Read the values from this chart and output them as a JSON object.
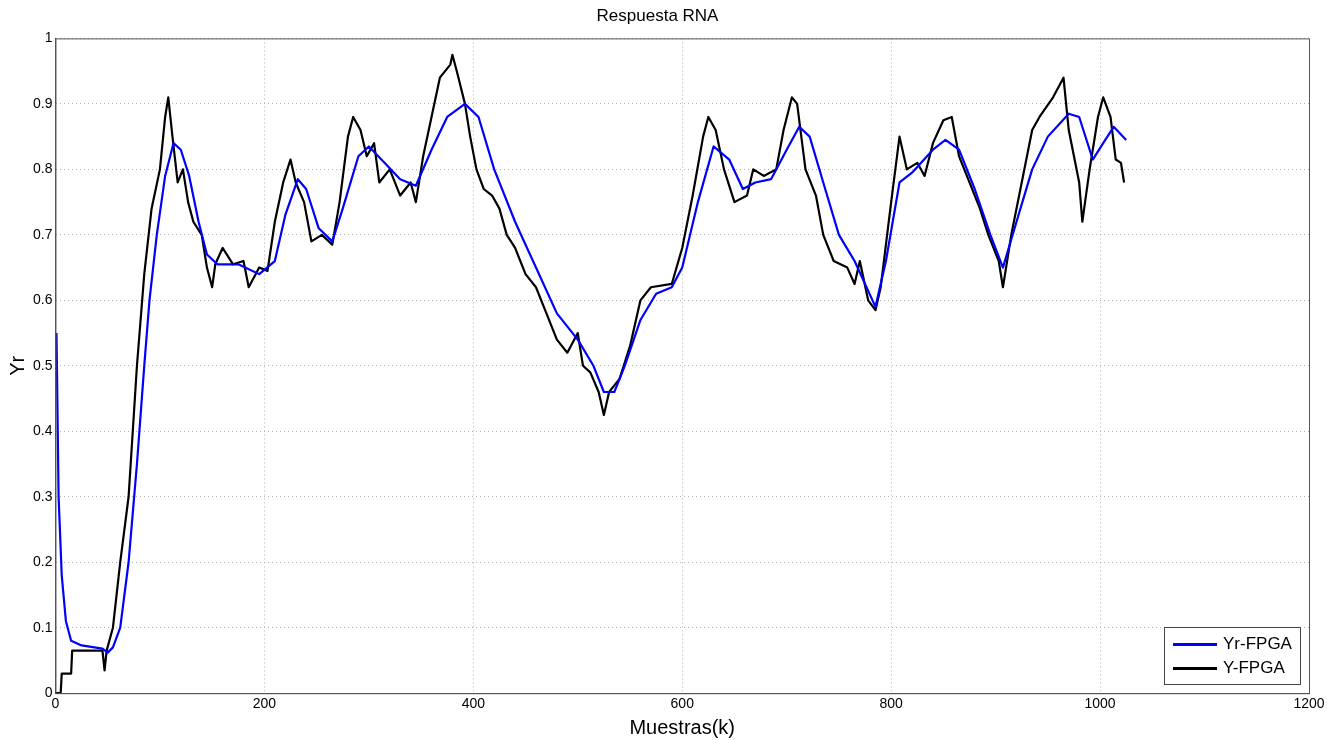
{
  "chart_data": {
    "type": "line",
    "title": "Respuesta RNA",
    "xlabel": "Muestras(k)",
    "ylabel": "Yr",
    "xlim": [
      0,
      1200
    ],
    "xticks": [
      0,
      200,
      400,
      600,
      800,
      1000,
      1200
    ],
    "ylim": [
      0,
      1
    ],
    "yticks": [
      0,
      0.1,
      0.2,
      0.3,
      0.4,
      0.5,
      0.6,
      0.7,
      0.8,
      0.9,
      1
    ],
    "grid": true,
    "legend": "bottom right",
    "marker": "none",
    "line_style": "solid",
    "series": [
      {
        "name": "Yr-FPGA",
        "color": "#0000ff",
        "x": [
          1,
          3,
          6,
          10,
          15,
          25,
          45,
          50,
          55,
          62,
          70,
          78,
          85,
          90,
          97,
          105,
          113,
          120,
          128,
          137,
          145,
          155,
          175,
          195,
          210,
          220,
          232,
          240,
          252,
          265,
          275,
          290,
          300,
          315,
          330,
          345,
          360,
          375,
          392,
          405,
          420,
          440,
          460,
          480,
          500,
          515,
          525,
          535,
          545,
          560,
          575,
          590,
          600,
          615,
          630,
          645,
          658,
          670,
          685,
          700,
          712,
          722,
          735,
          750,
          765,
          785,
          795,
          808,
          820,
          840,
          852,
          865,
          880,
          895,
          907,
          920,
          935,
          950,
          970,
          980,
          993,
          1003,
          1013,
          1025
        ],
        "values": [
          0.55,
          0.3,
          0.18,
          0.11,
          0.08,
          0.073,
          0.068,
          0.062,
          0.07,
          0.1,
          0.2,
          0.35,
          0.5,
          0.6,
          0.7,
          0.79,
          0.84,
          0.83,
          0.79,
          0.72,
          0.67,
          0.655,
          0.655,
          0.64,
          0.66,
          0.73,
          0.785,
          0.77,
          0.71,
          0.69,
          0.74,
          0.82,
          0.835,
          0.81,
          0.785,
          0.775,
          0.83,
          0.88,
          0.9,
          0.88,
          0.8,
          0.72,
          0.65,
          0.58,
          0.54,
          0.5,
          0.46,
          0.46,
          0.5,
          0.57,
          0.61,
          0.62,
          0.65,
          0.75,
          0.835,
          0.815,
          0.77,
          0.78,
          0.785,
          0.83,
          0.865,
          0.85,
          0.78,
          0.7,
          0.66,
          0.59,
          0.66,
          0.78,
          0.795,
          0.83,
          0.845,
          0.83,
          0.77,
          0.7,
          0.65,
          0.72,
          0.8,
          0.85,
          0.885,
          0.88,
          0.815,
          0.84,
          0.865,
          0.845
        ]
      },
      {
        "name": "Y-FPGA",
        "color": "#000000",
        "x": [
          0,
          5,
          6,
          15,
          16,
          45,
          47,
          49,
          55,
          62,
          70,
          78,
          85,
          92,
          100,
          105,
          108,
          112,
          117,
          122,
          127,
          132,
          140,
          145,
          150,
          153,
          160,
          170,
          180,
          185,
          195,
          203,
          210,
          218,
          225,
          230,
          238,
          245,
          255,
          265,
          272,
          280,
          285,
          292,
          298,
          305,
          310,
          320,
          330,
          340,
          345,
          352,
          360,
          368,
          378,
          380,
          385,
          392,
          397,
          403,
          410,
          418,
          425,
          432,
          440,
          450,
          460,
          470,
          480,
          490,
          500,
          505,
          512,
          520,
          525,
          530,
          540,
          550,
          560,
          570,
          590,
          600,
          610,
          620,
          625,
          632,
          640,
          650,
          662,
          668,
          678,
          690,
          697,
          705,
          710,
          718,
          728,
          735,
          745,
          758,
          765,
          770,
          778,
          785,
          790,
          800,
          808,
          815,
          825,
          832,
          840,
          850,
          858,
          865,
          875,
          885,
          893,
          903,
          907,
          915,
          925,
          935,
          942,
          955,
          965,
          970,
          980,
          983,
          990,
          998,
          1003,
          1010,
          1015,
          1020,
          1023
        ],
        "values": [
          0,
          0,
          0.03,
          0.03,
          0.065,
          0.065,
          0.035,
          0.065,
          0.1,
          0.2,
          0.3,
          0.5,
          0.64,
          0.74,
          0.8,
          0.88,
          0.91,
          0.85,
          0.78,
          0.8,
          0.75,
          0.72,
          0.7,
          0.65,
          0.62,
          0.655,
          0.68,
          0.655,
          0.66,
          0.62,
          0.65,
          0.645,
          0.72,
          0.78,
          0.815,
          0.78,
          0.75,
          0.69,
          0.7,
          0.685,
          0.75,
          0.85,
          0.88,
          0.86,
          0.82,
          0.84,
          0.78,
          0.8,
          0.76,
          0.78,
          0.75,
          0.82,
          0.88,
          0.94,
          0.96,
          0.975,
          0.945,
          0.9,
          0.85,
          0.8,
          0.77,
          0.76,
          0.74,
          0.7,
          0.68,
          0.64,
          0.62,
          0.58,
          0.54,
          0.52,
          0.55,
          0.5,
          0.49,
          0.46,
          0.425,
          0.46,
          0.48,
          0.53,
          0.6,
          0.62,
          0.625,
          0.68,
          0.76,
          0.85,
          0.88,
          0.86,
          0.8,
          0.75,
          0.76,
          0.8,
          0.79,
          0.8,
          0.86,
          0.91,
          0.9,
          0.8,
          0.76,
          0.7,
          0.66,
          0.65,
          0.625,
          0.66,
          0.6,
          0.585,
          0.62,
          0.75,
          0.85,
          0.8,
          0.81,
          0.79,
          0.84,
          0.875,
          0.88,
          0.82,
          0.78,
          0.74,
          0.7,
          0.66,
          0.62,
          0.7,
          0.78,
          0.86,
          0.88,
          0.91,
          0.94,
          0.86,
          0.78,
          0.72,
          0.8,
          0.88,
          0.91,
          0.88,
          0.815,
          0.81,
          0.78
        ]
      }
    ]
  }
}
